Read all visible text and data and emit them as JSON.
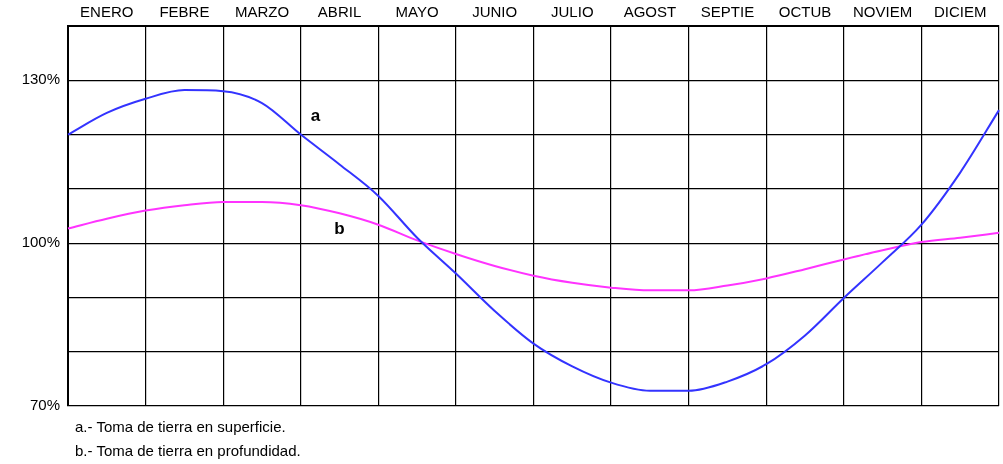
{
  "chart_data": {
    "type": "line",
    "categories": [
      null,
      "ENERO",
      null,
      "FEBRE",
      null,
      "MARZO",
      null,
      "ABRIL",
      null,
      "MAYO",
      null,
      "JUNIO",
      null,
      "JULIO",
      null,
      "AGOST",
      null,
      "SEPTIE",
      null,
      "OCTUB",
      null,
      "NOVIEM",
      null,
      "DICIEM",
      null
    ],
    "ylim": [
      70,
      140
    ],
    "yticks": [
      {
        "value": 70,
        "label": "70%"
      },
      {
        "value": 80,
        "label": null
      },
      {
        "value": 90,
        "label": null
      },
      {
        "value": 100,
        "label": "100%"
      },
      {
        "value": 110,
        "label": null
      },
      {
        "value": 120,
        "label": null
      },
      {
        "value": 130,
        "label": "130%"
      }
    ],
    "grid": true,
    "legend": false,
    "marker": "none",
    "line_style": "solid",
    "series": [
      {
        "name": "a",
        "color": "#3333ff",
        "values": [
          120,
          124,
          126.6,
          128.2,
          128,
          125.8,
          120,
          114.5,
          108.7,
          101,
          94.4,
          87.5,
          81.5,
          77.3,
          74.3,
          72.8,
          72.8,
          74.5,
          77.7,
          83,
          89.9,
          96.5,
          103.4,
          113,
          124.5
        ]
      },
      {
        "name": "b",
        "color": "#ff33ff",
        "values": [
          102.7,
          104.5,
          106,
          107,
          107.6,
          107.6,
          107,
          105.5,
          103.4,
          100.5,
          98,
          95.8,
          94,
          92.7,
          91.8,
          91.3,
          91.3,
          92.2,
          93.5,
          95.2,
          97,
          98.7,
          100.2,
          101,
          101.9
        ]
      }
    ],
    "annotations": [
      "a.- Toma de tierra en superficie.",
      "b.- Toma de tierra en profundidad."
    ]
  }
}
